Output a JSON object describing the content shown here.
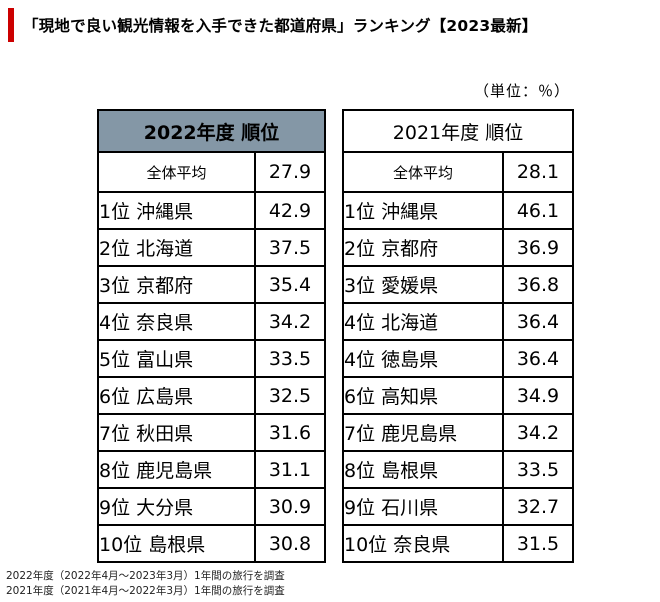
{
  "title": "「現地で良い観光情報を入手できた都道府県」ランキング【2023最新】",
  "unit": "（単位：％）",
  "table_2022": {
    "header": "2022年度 順位",
    "average": {
      "label": "全体平均",
      "value": "27.9"
    },
    "rows": [
      {
        "rank": "1位",
        "name": "沖縄県",
        "value": "42.9"
      },
      {
        "rank": "2位",
        "name": "北海道",
        "value": "37.5"
      },
      {
        "rank": "3位",
        "name": "京都府",
        "value": "35.4"
      },
      {
        "rank": "4位",
        "name": "奈良県",
        "value": "34.2"
      },
      {
        "rank": "5位",
        "name": "富山県",
        "value": "33.5"
      },
      {
        "rank": "6位",
        "name": "広島県",
        "value": "32.5"
      },
      {
        "rank": "7位",
        "name": "秋田県",
        "value": "31.6"
      },
      {
        "rank": "8位",
        "name": "鹿児島県",
        "value": "31.1"
      },
      {
        "rank": "9位",
        "name": "大分県",
        "value": "30.9"
      },
      {
        "rank": "10位",
        "name": "島根県",
        "value": "30.8"
      }
    ]
  },
  "table_2021": {
    "header": "2021年度 順位",
    "average": {
      "label": "全体平均",
      "value": "28.1"
    },
    "rows": [
      {
        "rank": "1位",
        "name": "沖縄県",
        "value": "46.1"
      },
      {
        "rank": "2位",
        "name": "京都府",
        "value": "36.9"
      },
      {
        "rank": "3位",
        "name": "愛媛県",
        "value": "36.8"
      },
      {
        "rank": "4位",
        "name": "北海道",
        "value": "36.4"
      },
      {
        "rank": "4位",
        "name": "徳島県",
        "value": "36.4"
      },
      {
        "rank": "6位",
        "name": "高知県",
        "value": "34.9"
      },
      {
        "rank": "7位",
        "name": "鹿児島県",
        "value": "34.2"
      },
      {
        "rank": "8位",
        "name": "島根県",
        "value": "33.5"
      },
      {
        "rank": "9位",
        "name": "石川県",
        "value": "32.7"
      },
      {
        "rank": "10位",
        "name": "奈良県",
        "value": "31.5"
      }
    ]
  },
  "notes": [
    "2022年度（2022年4月～2023年3月）1年間の旅行を調査",
    "2021年度（2021年4月～2022年3月）1年間の旅行を調査"
  ],
  "colors": {
    "accent": "#cc0000",
    "header_fill_2022": "#8497a6"
  }
}
